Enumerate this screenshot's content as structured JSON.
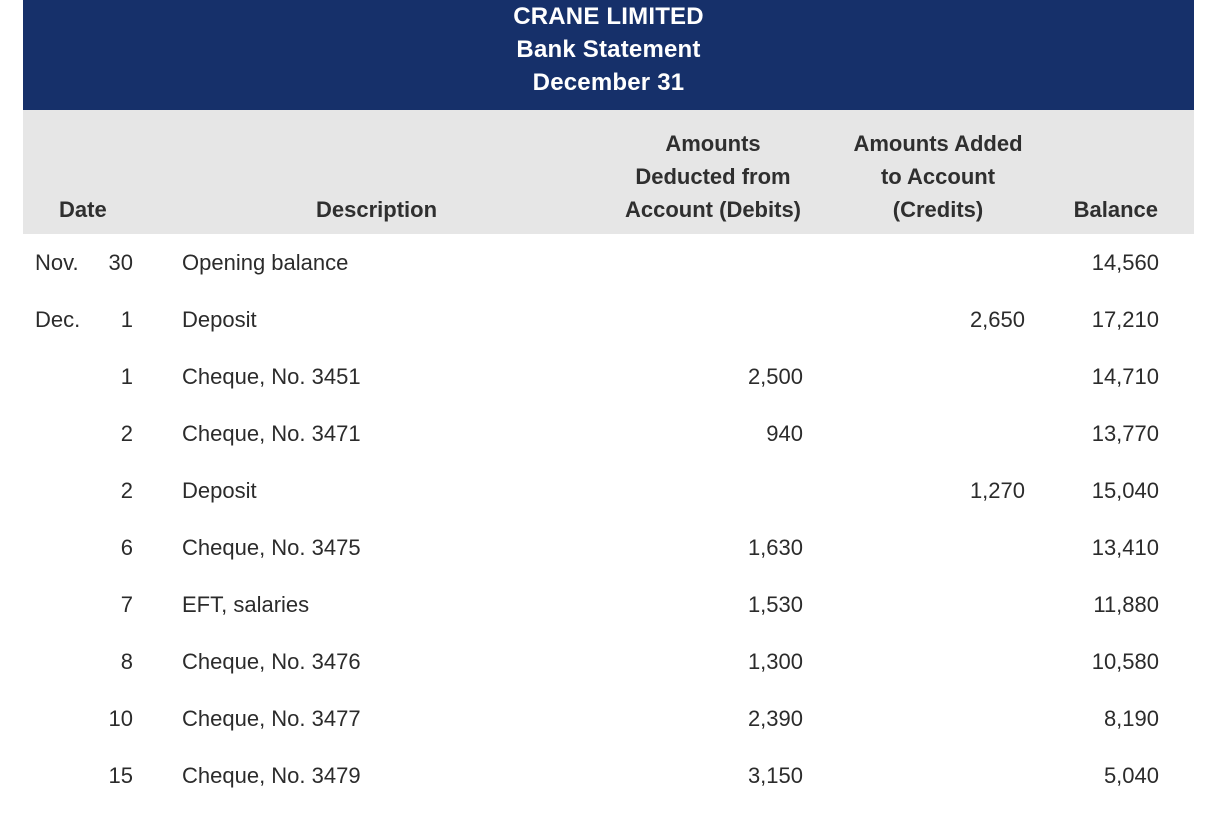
{
  "header": {
    "company": "CRANE LIMITED",
    "statement_title": "Bank Statement",
    "date": "December 31"
  },
  "columns": {
    "date": "Date",
    "description": "Description",
    "debits": [
      "Amounts",
      "Deducted from",
      "Account (Debits)"
    ],
    "credits": [
      "Amounts Added",
      "to Account",
      "(Credits)"
    ],
    "balance": "Balance"
  },
  "rows": [
    {
      "month": "Nov.",
      "day": "30",
      "description": "Opening balance",
      "debit": "",
      "credit": "",
      "balance": "14,560"
    },
    {
      "month": "Dec.",
      "day": "1",
      "description": "Deposit",
      "debit": "",
      "credit": "2,650",
      "balance": "17,210"
    },
    {
      "month": "",
      "day": "1",
      "description": "Cheque, No. 3451",
      "debit": "2,500",
      "credit": "",
      "balance": "14,710"
    },
    {
      "month": "",
      "day": "2",
      "description": "Cheque, No. 3471",
      "debit": "940",
      "credit": "",
      "balance": "13,770"
    },
    {
      "month": "",
      "day": "2",
      "description": "Deposit",
      "debit": "",
      "credit": "1,270",
      "balance": "15,040"
    },
    {
      "month": "",
      "day": "6",
      "description": "Cheque, No. 3475",
      "debit": "1,630",
      "credit": "",
      "balance": "13,410"
    },
    {
      "month": "",
      "day": "7",
      "description": "EFT, salaries",
      "debit": "1,530",
      "credit": "",
      "balance": "11,880"
    },
    {
      "month": "",
      "day": "8",
      "description": "Cheque, No. 3476",
      "debit": "1,300",
      "credit": "",
      "balance": "10,580"
    },
    {
      "month": "",
      "day": "10",
      "description": "Cheque, No. 3477",
      "debit": "2,390",
      "credit": "",
      "balance": "8,190"
    },
    {
      "month": "",
      "day": "15",
      "description": "Cheque, No. 3479",
      "debit": "3,150",
      "credit": "",
      "balance": "5,040"
    }
  ],
  "colors": {
    "title_band": "#16306a",
    "header_band": "#e6e6e6"
  }
}
